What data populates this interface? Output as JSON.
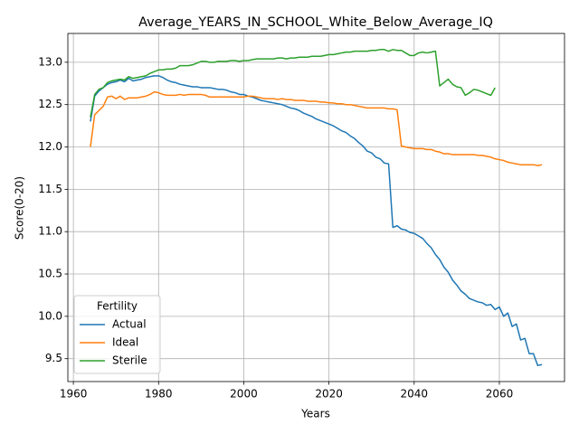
{
  "chart_data": {
    "type": "line",
    "title": "Average_YEARS_IN_SCHOOL_White_Below_Average_IQ",
    "x_label": "Years",
    "y_label": "Score(0-20)",
    "x": [
      1964,
      1965,
      1966,
      1967,
      1968,
      1969,
      1970,
      1971,
      1972,
      1973,
      1974,
      1975,
      1976,
      1977,
      1978,
      1979,
      1980,
      1981,
      1982,
      1983,
      1984,
      1985,
      1986,
      1987,
      1988,
      1989,
      1990,
      1991,
      1992,
      1993,
      1994,
      1995,
      1996,
      1997,
      1998,
      1999,
      2000,
      2001,
      2002,
      2003,
      2004,
      2005,
      2006,
      2007,
      2008,
      2009,
      2010,
      2011,
      2012,
      2013,
      2014,
      2015,
      2016,
      2017,
      2018,
      2019,
      2020,
      2021,
      2022,
      2023,
      2024,
      2025,
      2026,
      2027,
      2028,
      2029,
      2030,
      2031,
      2032,
      2033,
      2034,
      2035,
      2036,
      2037,
      2038,
      2039,
      2040,
      2041,
      2042,
      2043,
      2044,
      2045,
      2046,
      2047,
      2048,
      2049,
      2050,
      2051,
      2052,
      2053,
      2054,
      2055,
      2056,
      2057,
      2058,
      2059,
      2060,
      2061,
      2062,
      2063,
      2064,
      2065,
      2066,
      2067,
      2068,
      2069,
      2070
    ],
    "series": [
      {
        "name": "Actual",
        "color": "#1f77b4",
        "values": [
          12.3,
          12.6,
          12.66,
          12.7,
          12.74,
          12.76,
          12.77,
          12.79,
          12.77,
          12.81,
          12.78,
          12.79,
          12.8,
          12.82,
          12.83,
          12.84,
          12.84,
          12.82,
          12.79,
          12.77,
          12.76,
          12.74,
          12.73,
          12.72,
          12.71,
          12.71,
          12.7,
          12.7,
          12.7,
          12.69,
          12.68,
          12.68,
          12.67,
          12.65,
          12.64,
          12.62,
          12.62,
          12.6,
          12.59,
          12.57,
          12.55,
          12.54,
          12.53,
          12.52,
          12.51,
          12.5,
          12.48,
          12.46,
          12.45,
          12.43,
          12.4,
          12.38,
          12.36,
          12.33,
          12.31,
          12.29,
          12.27,
          12.25,
          12.22,
          12.19,
          12.17,
          12.13,
          12.1,
          12.05,
          12.01,
          11.95,
          11.93,
          11.88,
          11.86,
          11.81,
          11.8,
          11.05,
          11.07,
          11.03,
          11.02,
          10.99,
          10.98,
          10.95,
          10.92,
          10.86,
          10.81,
          10.73,
          10.67,
          10.58,
          10.52,
          10.43,
          10.37,
          10.3,
          10.26,
          10.21,
          10.19,
          10.17,
          10.16,
          10.13,
          10.14,
          10.08,
          10.11,
          10.0,
          10.04,
          9.88,
          9.91,
          9.72,
          9.74,
          9.56,
          9.56,
          9.42,
          9.43
        ]
      },
      {
        "name": "Ideal",
        "color": "#ff7f0e",
        "values": [
          12.0,
          12.38,
          12.43,
          12.48,
          12.59,
          12.6,
          12.57,
          12.6,
          12.56,
          12.58,
          12.58,
          12.58,
          12.59,
          12.6,
          12.62,
          12.65,
          12.64,
          12.62,
          12.61,
          12.61,
          12.61,
          12.62,
          12.61,
          12.62,
          12.62,
          12.62,
          12.62,
          12.61,
          12.59,
          12.59,
          12.59,
          12.59,
          12.59,
          12.59,
          12.59,
          12.59,
          12.59,
          12.6,
          12.6,
          12.59,
          12.58,
          12.57,
          12.57,
          12.57,
          12.56,
          12.57,
          12.56,
          12.56,
          12.55,
          12.55,
          12.55,
          12.54,
          12.54,
          12.54,
          12.53,
          12.53,
          12.52,
          12.52,
          12.51,
          12.51,
          12.5,
          12.5,
          12.49,
          12.48,
          12.47,
          12.46,
          12.46,
          12.46,
          12.46,
          12.46,
          12.45,
          12.45,
          12.44,
          12.01,
          12.0,
          11.99,
          11.98,
          11.98,
          11.98,
          11.97,
          11.97,
          11.95,
          11.94,
          11.92,
          11.92,
          11.91,
          11.91,
          11.91,
          11.91,
          11.91,
          11.91,
          11.9,
          11.9,
          11.89,
          11.88,
          11.86,
          11.85,
          11.84,
          11.82,
          11.81,
          11.8,
          11.79,
          11.79,
          11.79,
          11.79,
          11.78,
          11.79
        ]
      },
      {
        "name": "Sterile",
        "color": "#2ca02c",
        "values": [
          12.35,
          12.62,
          12.68,
          12.7,
          12.76,
          12.78,
          12.79,
          12.8,
          12.79,
          12.83,
          12.81,
          12.82,
          12.83,
          12.84,
          12.87,
          12.89,
          12.91,
          12.91,
          12.92,
          12.92,
          12.93,
          12.96,
          12.96,
          12.96,
          12.97,
          12.99,
          13.01,
          13.01,
          13.0,
          13.0,
          13.01,
          13.01,
          13.01,
          13.02,
          13.02,
          13.01,
          13.02,
          13.02,
          13.03,
          13.04,
          13.04,
          13.04,
          13.04,
          13.04,
          13.05,
          13.05,
          13.04,
          13.05,
          13.05,
          13.06,
          13.06,
          13.06,
          13.07,
          13.07,
          13.07,
          13.08,
          13.09,
          13.09,
          13.1,
          13.11,
          13.12,
          13.12,
          13.13,
          13.13,
          13.13,
          13.13,
          13.14,
          13.14,
          13.15,
          13.15,
          13.13,
          13.15,
          13.14,
          13.14,
          13.11,
          13.08,
          13.08,
          13.11,
          13.12,
          13.11,
          13.12,
          13.13,
          12.72,
          12.76,
          12.8,
          12.74,
          12.71,
          12.7,
          12.61,
          12.64,
          12.68,
          12.67,
          12.65,
          12.63,
          12.61,
          12.7,
          null,
          null,
          null,
          null,
          null,
          null,
          null,
          null,
          null,
          null,
          null
        ]
      }
    ],
    "xlim": [
      1958.7,
      2075.3
    ],
    "ylim": [
      9.23,
      13.34
    ],
    "xticks": [
      1960,
      1980,
      2000,
      2020,
      2040,
      2060
    ],
    "yticks": [
      9.5,
      {
        "value": 10,
        "label": "10.0"
      },
      10.5,
      {
        "value": 11,
        "label": "11.0"
      },
      11.5,
      {
        "value": 12,
        "label": "12.0"
      },
      12.5,
      {
        "value": 13,
        "label": "13.0"
      }
    ],
    "grid": true,
    "legend_title": "Fertility",
    "legend_position": "lower left"
  }
}
